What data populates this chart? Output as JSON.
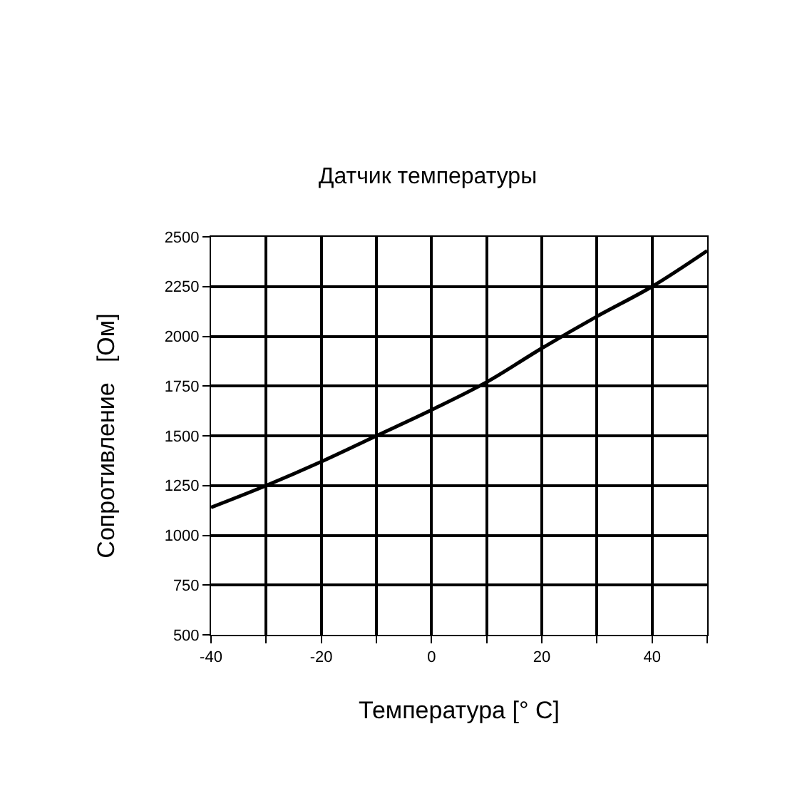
{
  "chart_data": {
    "type": "line",
    "title": "Датчик температуры",
    "xlabel": "Температура [° C]",
    "ylabel": "Сопротивление   [Ом]",
    "x": [
      -40,
      -30,
      -20,
      -10,
      0,
      10,
      20,
      30,
      40,
      50
    ],
    "series": [
      {
        "color": "#000000",
        "values": [
          1140,
          1250,
          1370,
          1500,
          1630,
          1770,
          1940,
          2100,
          2250,
          2430
        ]
      }
    ],
    "xlim": [
      -40,
      50
    ],
    "xticks": [
      -40,
      -20,
      0,
      20,
      40,
      {
        "value": -30,
        "label": null
      },
      {
        "value": -10,
        "label": null
      },
      {
        "value": 10,
        "label": null
      },
      {
        "value": 30,
        "label": null
      },
      {
        "value": 50,
        "label": null
      }
    ],
    "ylim": [
      500,
      2500
    ],
    "yticks": [
      500,
      750,
      1000,
      1250,
      1500,
      1750,
      2000,
      2250,
      2500
    ],
    "grid": true,
    "legend": false,
    "marker": "none",
    "line_style": "solid"
  }
}
